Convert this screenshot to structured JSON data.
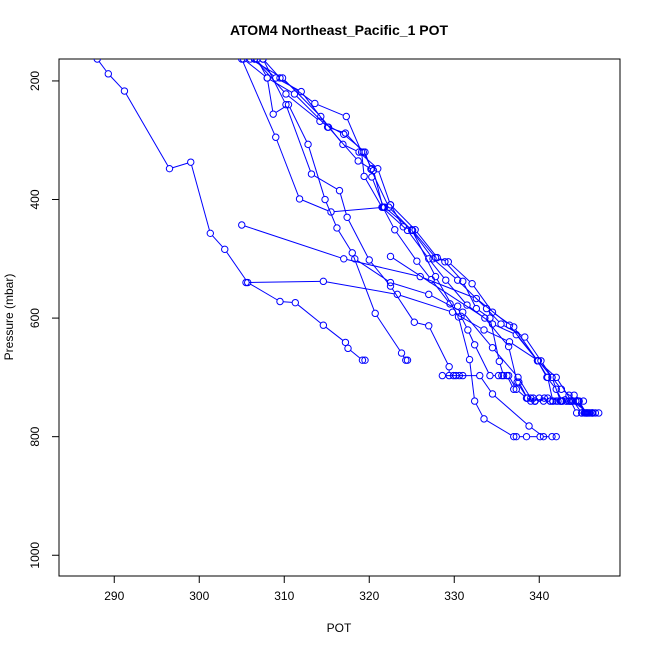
{
  "chart_data": {
    "type": "line",
    "title": "ATOM4 Northeast_Pacific_1 POT",
    "xlabel": "POT",
    "ylabel": "Pressure (mbar)",
    "xlim": [
      283.5,
      349.5
    ],
    "ylim": [
      1035,
      163
    ],
    "y_reversed": true,
    "x_ticks": [
      290,
      300,
      310,
      320,
      330,
      340
    ],
    "y_ticks": [
      200,
      400,
      600,
      800,
      1000
    ],
    "grid": false,
    "line_color": "#0000ff",
    "marker": "open-circle",
    "series": [
      {
        "points": [
          [
            288.0,
            163
          ],
          [
            289.3,
            188
          ],
          [
            291.2,
            217
          ],
          [
            296.5,
            348
          ],
          [
            299.0,
            337
          ],
          [
            301.3,
            457
          ],
          [
            303.0,
            484
          ],
          [
            305.7,
            540
          ],
          [
            309.5,
            572
          ],
          [
            311.3,
            574
          ],
          [
            314.6,
            612
          ],
          [
            317.2,
            641
          ],
          [
            317.5,
            651
          ],
          [
            319.2,
            671
          ],
          [
            319.5,
            671
          ]
        ]
      },
      {
        "points": [
          [
            305.2,
            163
          ],
          [
            308.0,
            195
          ],
          [
            308.7,
            256
          ],
          [
            310.5,
            240
          ],
          [
            312.8,
            307
          ],
          [
            314.8,
            400
          ],
          [
            316.2,
            448
          ],
          [
            318.0,
            490
          ],
          [
            320.7,
            592
          ],
          [
            323.8,
            659
          ],
          [
            324.3,
            671
          ],
          [
            324.5,
            671
          ]
        ]
      },
      {
        "points": [
          [
            305.0,
            163
          ],
          [
            309.0,
            295
          ],
          [
            311.8,
            399
          ],
          [
            315.5,
            421
          ],
          [
            321.8,
            413
          ],
          [
            325.0,
            451
          ],
          [
            327.8,
            530
          ],
          [
            330.5,
            598
          ],
          [
            331.8,
            670
          ],
          [
            332.4,
            740
          ],
          [
            333.5,
            770
          ],
          [
            337.0,
            800
          ],
          [
            337.3,
            800
          ],
          [
            338.5,
            800
          ],
          [
            340.1,
            800
          ],
          [
            341.5,
            800
          ],
          [
            342.0,
            800
          ]
        ]
      },
      {
        "points": [
          [
            307.5,
            163
          ],
          [
            310.2,
            240
          ],
          [
            313.2,
            357
          ],
          [
            316.5,
            385
          ],
          [
            317.4,
            430
          ],
          [
            320.0,
            502
          ],
          [
            322.5,
            546
          ],
          [
            325.3,
            607
          ],
          [
            327.0,
            613
          ],
          [
            329.4,
            682
          ],
          [
            329.4,
            697
          ],
          [
            329.9,
            697
          ],
          [
            330.2,
            697
          ],
          [
            330.6,
            697
          ],
          [
            331.0,
            697
          ]
        ]
      },
      {
        "points": [
          [
            306.5,
            163
          ],
          [
            309.0,
            195
          ],
          [
            312.0,
            218
          ],
          [
            315.2,
            278
          ],
          [
            318.7,
            335
          ],
          [
            320.5,
            351
          ],
          [
            321.6,
            413
          ],
          [
            323.0,
            451
          ],
          [
            325.6,
            504
          ],
          [
            327.3,
            535
          ],
          [
            329.5,
            576
          ],
          [
            330.4,
            580
          ],
          [
            330.8,
            597
          ],
          [
            331.6,
            620
          ],
          [
            332.4,
            645
          ],
          [
            334.2,
            697
          ],
          [
            335.2,
            697
          ],
          [
            335.6,
            697
          ],
          [
            336.2,
            697
          ],
          [
            337.0,
            720
          ],
          [
            337.6,
            708
          ],
          [
            338.6,
            735
          ],
          [
            339.3,
            735
          ],
          [
            339.5,
            740
          ],
          [
            340.6,
            735
          ],
          [
            341.3,
            740
          ],
          [
            341.6,
            740
          ],
          [
            342.2,
            740
          ],
          [
            342.7,
            740
          ],
          [
            343.2,
            740
          ],
          [
            343.7,
            740
          ],
          [
            344.4,
            760
          ],
          [
            345.0,
            760
          ],
          [
            345.4,
            760
          ],
          [
            345.7,
            760
          ],
          [
            346.2,
            760
          ],
          [
            346.6,
            760
          ],
          [
            347.0,
            760
          ]
        ]
      },
      {
        "points": [
          [
            306.8,
            163
          ],
          [
            308.0,
            195
          ],
          [
            311.2,
            222
          ],
          [
            315.1,
            278
          ],
          [
            317.2,
            288
          ],
          [
            319.3,
            320
          ],
          [
            320.3,
            348
          ],
          [
            320.3,
            362
          ],
          [
            321.7,
            413
          ],
          [
            322.5,
            409
          ],
          [
            324.0,
            446
          ],
          [
            325.1,
            452
          ],
          [
            327.8,
            498
          ],
          [
            328.9,
            505
          ],
          [
            331.0,
            538
          ],
          [
            332.6,
            584
          ],
          [
            334.2,
            600
          ],
          [
            335.3,
            673
          ],
          [
            335.8,
            697
          ],
          [
            336.4,
            697
          ],
          [
            337.3,
            720
          ],
          [
            338.5,
            735
          ],
          [
            339.0,
            740
          ],
          [
            340.0,
            735
          ],
          [
            340.5,
            740
          ],
          [
            341.3,
            740
          ],
          [
            342.0,
            740
          ],
          [
            342.5,
            740
          ],
          [
            343.2,
            740
          ],
          [
            344.1,
            730
          ],
          [
            345.2,
            740
          ]
        ]
      },
      {
        "points": [
          [
            307.5,
            163
          ],
          [
            309.5,
            195
          ],
          [
            313.6,
            238
          ],
          [
            317.3,
            260
          ],
          [
            319.1,
            320
          ],
          [
            319.4,
            361
          ],
          [
            321.5,
            413
          ],
          [
            324.5,
            452
          ],
          [
            327.0,
            500
          ],
          [
            329.0,
            536
          ],
          [
            331.5,
            578
          ],
          [
            334.5,
            610
          ],
          [
            337.3,
            628
          ],
          [
            339.8,
            672
          ],
          [
            341.0,
            700
          ],
          [
            341.6,
            740
          ],
          [
            343.5,
            730
          ],
          [
            344.0,
            740
          ],
          [
            345.0,
            760
          ],
          [
            345.8,
            760
          ],
          [
            346.2,
            760
          ]
        ]
      },
      {
        "points": [
          [
            306.5,
            163
          ],
          [
            310.2,
            222
          ],
          [
            314.2,
            268
          ],
          [
            317.0,
            290
          ],
          [
            319.5,
            320
          ],
          [
            320.2,
            349
          ],
          [
            322.3,
            413
          ],
          [
            325.0,
            452
          ],
          [
            327.5,
            500
          ],
          [
            330.4,
            536
          ],
          [
            333.8,
            584
          ],
          [
            335.5,
            610
          ],
          [
            338.3,
            632
          ],
          [
            340.2,
            672
          ],
          [
            341.5,
            700
          ],
          [
            342.5,
            740
          ],
          [
            343.5,
            740
          ],
          [
            344.3,
            740
          ],
          [
            345.6,
            760
          ],
          [
            346.3,
            760
          ]
        ]
      },
      {
        "points": [
          [
            306.0,
            163
          ],
          [
            309.8,
            195
          ],
          [
            314.3,
            260
          ],
          [
            316.9,
            307
          ],
          [
            318.8,
            320
          ],
          [
            321.0,
            348
          ],
          [
            322.5,
            409
          ],
          [
            325.4,
            451
          ],
          [
            328.0,
            498
          ],
          [
            329.3,
            505
          ],
          [
            332.1,
            542
          ],
          [
            334.5,
            590
          ],
          [
            337.0,
            615
          ],
          [
            339.8,
            672
          ],
          [
            340.9,
            700
          ],
          [
            342.0,
            720
          ],
          [
            342.7,
            740
          ],
          [
            343.7,
            740
          ],
          [
            344.7,
            740
          ],
          [
            345.5,
            760
          ],
          [
            346.0,
            760
          ]
        ]
      },
      {
        "points": [
          [
            322.5,
            496
          ],
          [
            333.6,
            600
          ],
          [
            336.4,
            648
          ],
          [
            337.4,
            708
          ],
          [
            338.6,
            735
          ],
          [
            339.5,
            740
          ],
          [
            341.0,
            735
          ],
          [
            342.6,
            740
          ],
          [
            343.5,
            740
          ],
          [
            344.6,
            740
          ],
          [
            345.3,
            760
          ]
        ]
      },
      {
        "points": [
          [
            305.5,
            540
          ],
          [
            314.6,
            538
          ],
          [
            323.3,
            560
          ],
          [
            329.8,
            590
          ],
          [
            333.5,
            620
          ],
          [
            336.5,
            640
          ],
          [
            339.9,
            672
          ],
          [
            341.5,
            700
          ],
          [
            342.6,
            720
          ],
          [
            344.5,
            740
          ],
          [
            345.6,
            760
          ],
          [
            346.3,
            760
          ]
        ]
      },
      {
        "points": [
          [
            305.0,
            443
          ],
          [
            317.0,
            500
          ],
          [
            326.0,
            530
          ],
          [
            332.6,
            567
          ],
          [
            336.5,
            612
          ],
          [
            339.8,
            672
          ],
          [
            342.0,
            700
          ],
          [
            343.8,
            740
          ],
          [
            345.9,
            760
          ]
        ]
      },
      {
        "points": [
          [
            318.3,
            500
          ],
          [
            322.5,
            540
          ],
          [
            327.0,
            560
          ],
          [
            331.0,
            590
          ],
          [
            334.5,
            650
          ],
          [
            337.5,
            700
          ],
          [
            339.0,
            735
          ],
          [
            339.5,
            740
          ]
        ]
      },
      {
        "points": [
          [
            328.6,
            697
          ],
          [
            333.0,
            697
          ],
          [
            334.5,
            728
          ],
          [
            338.8,
            782
          ],
          [
            340.5,
            800
          ]
        ]
      }
    ]
  }
}
